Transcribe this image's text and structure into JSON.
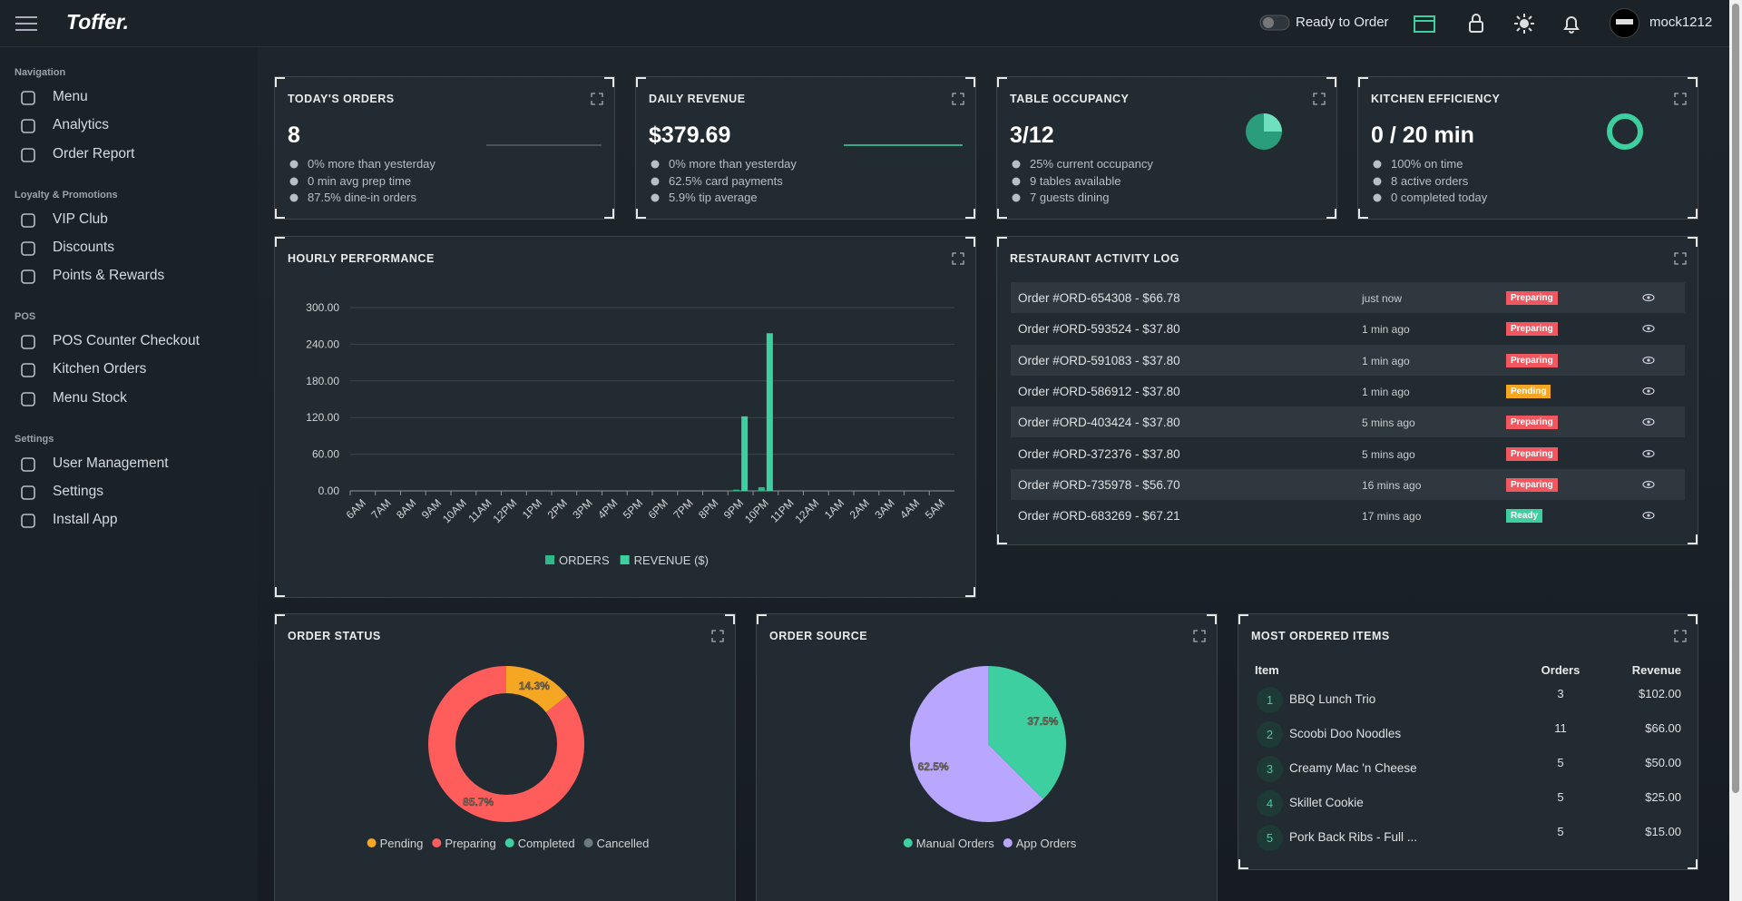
{
  "header": {
    "brand": "Toffer.",
    "status_label": "Ready to Order",
    "user": "mock1212"
  },
  "sidebar": [
    {
      "title": "Navigation",
      "items": [
        "Menu",
        "Analytics",
        "Order Report"
      ]
    },
    {
      "title": "Loyalty & Promotions",
      "items": [
        "VIP Club",
        "Discounts",
        "Points & Rewards"
      ]
    },
    {
      "title": "POS",
      "items": [
        "POS Counter Checkout",
        "Kitchen Orders",
        "Menu Stock"
      ]
    },
    {
      "title": "Settings",
      "items": [
        "User Management",
        "Settings",
        "Install App"
      ]
    }
  ],
  "stats": [
    {
      "title": "TODAY'S ORDERS",
      "value": "8",
      "lines": [
        "0% more than yesterday",
        "0 min avg prep time",
        "87.5% dine-in orders"
      ]
    },
    {
      "title": "DAILY REVENUE",
      "value": "$379.69",
      "lines": [
        "0% more than yesterday",
        "62.5% card payments",
        "5.9% tip average"
      ]
    },
    {
      "title": "TABLE OCCUPANCY",
      "value": "3/12",
      "lines": [
        "25% current occupancy",
        "9 tables available",
        "7 guests dining"
      ]
    },
    {
      "title": "KITCHEN EFFICIENCY",
      "value": "0 / 20 min",
      "lines": [
        "100% on time",
        "8 active orders",
        "0 completed today"
      ]
    }
  ],
  "chart_data": [
    {
      "type": "bar",
      "title": "HOURLY PERFORMANCE",
      "categories": [
        "6AM",
        "7AM",
        "8AM",
        "9AM",
        "10AM",
        "11AM",
        "12PM",
        "1PM",
        "2PM",
        "3PM",
        "4PM",
        "5PM",
        "6PM",
        "7PM",
        "8PM",
        "9PM",
        "10PM",
        "11PM",
        "12AM",
        "1AM",
        "2AM",
        "3AM",
        "4AM",
        "5AM"
      ],
      "series": [
        {
          "name": "ORDERS",
          "color": "#2fb88a",
          "values": [
            0,
            0,
            0,
            0,
            0,
            0,
            0,
            0,
            0,
            0,
            0,
            0,
            0,
            0,
            0,
            2,
            6,
            0,
            0,
            0,
            0,
            0,
            0,
            0
          ]
        },
        {
          "name": "REVENUE ($)",
          "color": "#3ecfa0",
          "values": [
            0,
            0,
            0,
            0,
            0,
            0,
            0,
            0,
            0,
            0,
            0,
            0,
            0,
            0,
            0,
            122,
            258,
            0,
            0,
            0,
            0,
            0,
            0,
            0
          ]
        }
      ],
      "ylim": [
        0,
        300
      ],
      "yticks": [
        {
          "value": 0,
          "label": "0.00"
        },
        {
          "value": 60,
          "label": "60.00"
        },
        {
          "value": 120,
          "label": "120.00"
        },
        {
          "value": 180,
          "label": "180.00"
        },
        {
          "value": 240,
          "label": "240.00"
        },
        {
          "value": 300,
          "label": "300.00"
        }
      ],
      "grid": true
    },
    {
      "type": "pie",
      "title": "ORDER STATUS",
      "donut": true,
      "categories": [
        "Pending",
        "Preparing",
        "Completed",
        "Cancelled"
      ],
      "values": [
        14.3,
        85.7,
        0,
        0
      ],
      "value_labels": [
        "14.3%",
        "85.7%",
        null,
        null
      ],
      "colors": [
        "#f5a623",
        "#ff5c5c",
        "#3ecfa0",
        "#6b7b80"
      ]
    },
    {
      "type": "pie",
      "title": "ORDER SOURCE",
      "donut": false,
      "categories": [
        "Manual Orders",
        "App Orders"
      ],
      "values": [
        37.5,
        62.5
      ],
      "value_labels": [
        "37.5%",
        "62.5%"
      ],
      "colors": [
        "#3ecfa0",
        "#b9a7ff"
      ]
    }
  ],
  "activity": {
    "title": "RESTAURANT ACTIVITY LOG",
    "rows": [
      {
        "order": "Order #ORD-654308 - $66.78",
        "time": "just now",
        "status": "Preparing",
        "status_color": "#f2575f"
      },
      {
        "order": "Order #ORD-593524 - $37.80",
        "time": "1 min ago",
        "status": "Preparing",
        "status_color": "#f2575f"
      },
      {
        "order": "Order #ORD-591083 - $37.80",
        "time": "1 min ago",
        "status": "Preparing",
        "status_color": "#f2575f"
      },
      {
        "order": "Order #ORD-586912 - $37.80",
        "time": "1 min ago",
        "status": "Pending",
        "status_color": "#f5a623"
      },
      {
        "order": "Order #ORD-403424 - $37.80",
        "time": "5 mins ago",
        "status": "Preparing",
        "status_color": "#f2575f"
      },
      {
        "order": "Order #ORD-372376 - $37.80",
        "time": "5 mins ago",
        "status": "Preparing",
        "status_color": "#f2575f"
      },
      {
        "order": "Order #ORD-735978 - $56.70",
        "time": "16 mins ago",
        "status": "Preparing",
        "status_color": "#f2575f"
      },
      {
        "order": "Order #ORD-683269 - $67.21",
        "time": "17 mins ago",
        "status": "Ready",
        "status_color": "#3ecfa0"
      }
    ]
  },
  "top_items": {
    "title": "MOST ORDERED ITEMS",
    "columns": [
      "Item",
      "Orders",
      "Revenue"
    ],
    "rows": [
      {
        "rank": 1,
        "item": "BBQ Lunch Trio",
        "orders": 3,
        "revenue": "$102.00"
      },
      {
        "rank": 2,
        "item": "Scoobi Doo Noodles",
        "orders": 11,
        "revenue": "$66.00"
      },
      {
        "rank": 3,
        "item": "Creamy Mac 'n Cheese",
        "orders": 5,
        "revenue": "$50.00"
      },
      {
        "rank": 4,
        "item": "Skillet Cookie",
        "orders": 5,
        "revenue": "$25.00"
      },
      {
        "rank": 5,
        "item": "Pork Back Ribs - Full ...",
        "orders": 5,
        "revenue": "$15.00"
      }
    ]
  }
}
